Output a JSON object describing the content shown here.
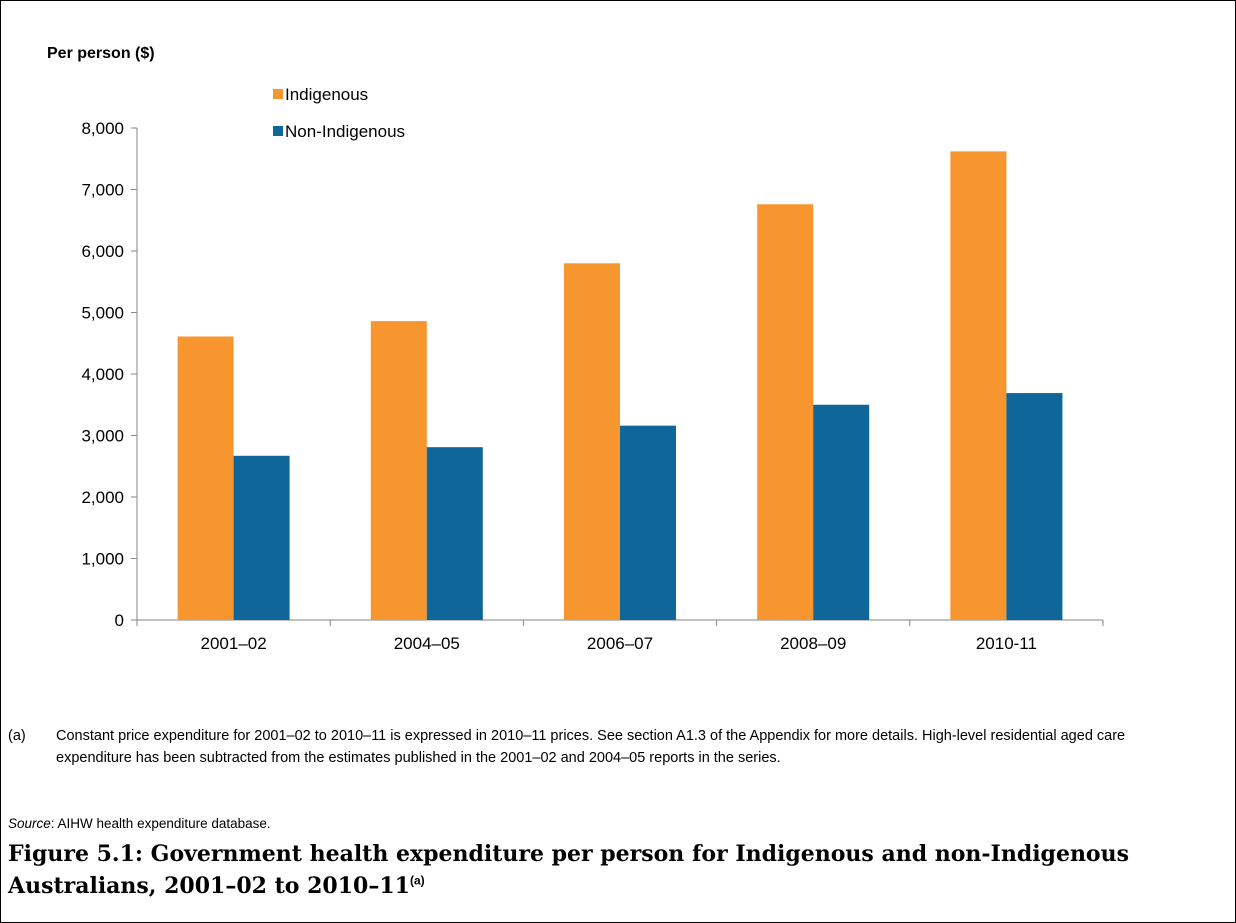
{
  "chart_data": {
    "type": "bar",
    "ylabel": "Per person ($)",
    "categories": [
      "2001–02",
      "2004–05",
      "2006–07",
      "2008–09",
      "2010-11"
    ],
    "series": [
      {
        "name": "Indigenous",
        "color": "#F7962E",
        "values": [
          4610,
          4860,
          5800,
          6760,
          7620
        ]
      },
      {
        "name": "Non-Indigenous",
        "color": "#0E6798",
        "values": [
          2670,
          2810,
          3160,
          3500,
          3690
        ]
      }
    ],
    "ylim": [
      0,
      8000
    ],
    "yticks": [
      0,
      1000,
      2000,
      3000,
      4000,
      5000,
      6000,
      7000,
      8000
    ],
    "ytick_labels": [
      "0",
      "1,000",
      "2,000",
      "3,000",
      "4,000",
      "5,000",
      "6,000",
      "7,000",
      "8,000"
    ],
    "grid": false,
    "legend_position": "top-left"
  },
  "note": {
    "mark": "(a)",
    "text": "Constant price expenditure for 2001–02 to 2010–11 is expressed in 2010–11 prices. See section A1.3 of the Appendix for more details. High-level residential aged care expenditure has been subtracted from the estimates published in the 2001–02 and 2004–05 reports in the series."
  },
  "source": {
    "label": "Source",
    "text": ": AIHW health expenditure database."
  },
  "caption": {
    "text": "Figure 5.1: Government health expenditure per person for Indigenous and non-Indigenous Australians, 2001–02 to 2010–11",
    "sup": "(a)"
  }
}
